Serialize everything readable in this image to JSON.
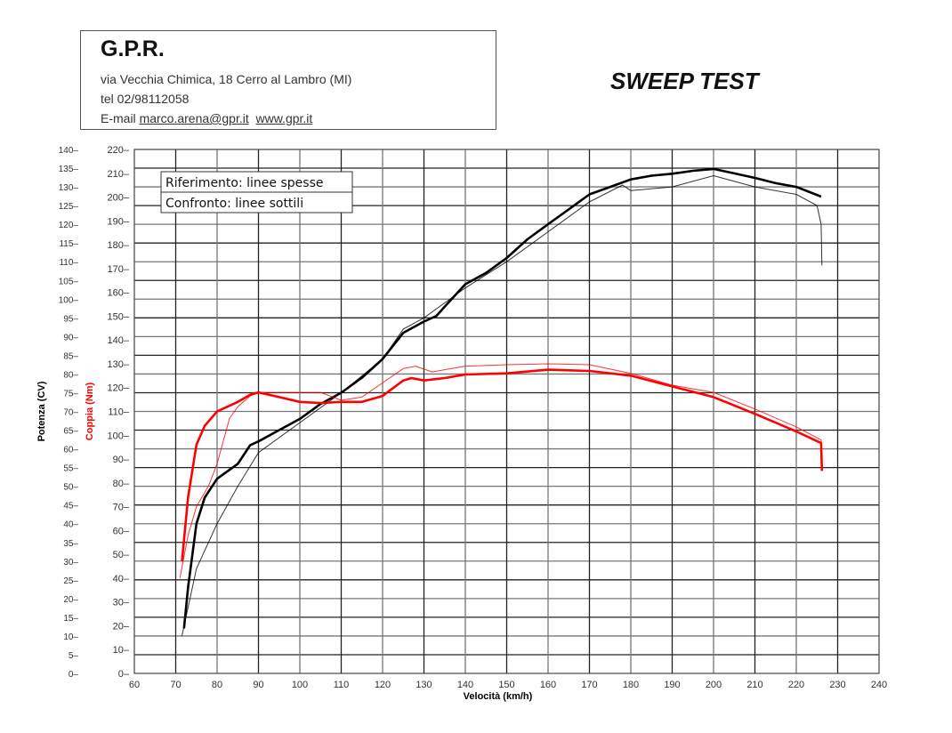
{
  "header": {
    "company": "G.P.R.",
    "address": "via Vecchia Chimica, 18 Cerro al Lambro (MI)",
    "phone": "tel 02/98112058",
    "email_label": "E-mail",
    "email": "marco.arena@gpr.it",
    "website": "www.gpr.it"
  },
  "title": "SWEEP TEST",
  "chart_data": {
    "type": "line",
    "title": "SWEEP TEST",
    "xlabel": "Velocità (km/h)",
    "ylabel_left": "Potenza (CV)",
    "ylabel_right": "Coppia (Nm)",
    "xlim": [
      60,
      240
    ],
    "ylim_power": [
      0,
      140
    ],
    "ylim_torque": [
      0,
      220
    ],
    "x_ticks": [
      60,
      70,
      80,
      90,
      100,
      110,
      120,
      130,
      140,
      150,
      160,
      170,
      180,
      190,
      200,
      210,
      220,
      230,
      240
    ],
    "power_ticks": [
      0,
      5,
      10,
      15,
      20,
      25,
      30,
      35,
      40,
      45,
      50,
      55,
      60,
      65,
      70,
      75,
      80,
      85,
      90,
      95,
      100,
      105,
      110,
      115,
      120,
      125,
      130,
      135,
      140
    ],
    "torque_ticks": [
      0,
      10,
      20,
      30,
      40,
      50,
      60,
      70,
      80,
      90,
      100,
      110,
      120,
      130,
      140,
      150,
      160,
      170,
      180,
      190,
      200,
      210,
      220
    ],
    "grid": true,
    "legend": {
      "placement": "top-left",
      "entries": [
        "Riferimento: linee spesse",
        "Confronto: linee sottili"
      ]
    },
    "colors": {
      "power": "#000000",
      "torque": "#ff0000",
      "axis_torque_label": "#ff0000"
    },
    "series": [
      {
        "quantity": "power",
        "axis": "left",
        "style": "thick",
        "color": "#000000",
        "x": [
          72,
          73,
          75,
          77,
          80,
          85,
          88,
          90,
          95,
          100,
          105,
          110,
          115,
          120,
          125,
          130,
          133,
          135,
          140,
          145,
          150,
          155,
          160,
          165,
          170,
          175,
          180,
          185,
          190,
          195,
          200,
          205,
          210,
          215,
          220,
          226
        ],
        "y": [
          12,
          23,
          40,
          47,
          52,
          56,
          61,
          62,
          65,
          68,
          72,
          75,
          79,
          84,
          91,
          94,
          95.5,
          98,
          104,
          107,
          111,
          116,
          120,
          124,
          128,
          130,
          132,
          133,
          133.5,
          134.3,
          134.8,
          133.6,
          132.4,
          131,
          130,
          127.4
        ]
      },
      {
        "quantity": "power",
        "axis": "left",
        "style": "thin",
        "color": "#000000",
        "x": [
          71.5,
          75,
          80,
          85,
          90,
          100,
          110,
          120,
          125,
          130,
          140,
          150,
          160,
          170,
          178,
          180,
          190,
          200,
          210,
          220,
          225,
          226,
          226.2
        ],
        "y": [
          10,
          28,
          40,
          50,
          59,
          67,
          75,
          84,
          92,
          95,
          103,
          110,
          118,
          126,
          130.5,
          129,
          130,
          133,
          130,
          128,
          125,
          120,
          109
        ]
      },
      {
        "quantity": "torque",
        "axis": "right",
        "style": "thick",
        "color": "#ff0000",
        "x": [
          71.5,
          73,
          75,
          77,
          80,
          85,
          88,
          90,
          95,
          100,
          105,
          110,
          115,
          120,
          125,
          127,
          130,
          135,
          140,
          150,
          160,
          170,
          180,
          190,
          200,
          210,
          220,
          226,
          226.2
        ],
        "y": [
          47,
          74,
          96,
          104,
          110,
          114,
          117,
          118,
          116,
          114,
          113.5,
          114,
          114,
          116.5,
          123,
          124,
          123,
          124,
          125.5,
          126,
          127.5,
          127,
          125,
          120.5,
          116,
          109,
          101.6,
          96.7,
          85
        ]
      },
      {
        "quantity": "torque",
        "axis": "right",
        "style": "thin",
        "color": "#ff0000",
        "x": [
          71,
          73,
          75,
          78,
          80,
          83,
          85,
          88,
          90,
          100,
          105,
          110,
          115,
          120,
          125,
          128,
          132,
          140,
          150,
          160,
          170,
          180,
          190,
          200,
          210,
          220,
          226,
          226.2
        ],
        "y": [
          40,
          58,
          70,
          79,
          88,
          107,
          112,
          116.5,
          118,
          118,
          118,
          114.7,
          116,
          122,
          128,
          129,
          126.6,
          129,
          129.6,
          130,
          129.6,
          126,
          121,
          118,
          111,
          103.5,
          98,
          85
        ]
      }
    ]
  }
}
